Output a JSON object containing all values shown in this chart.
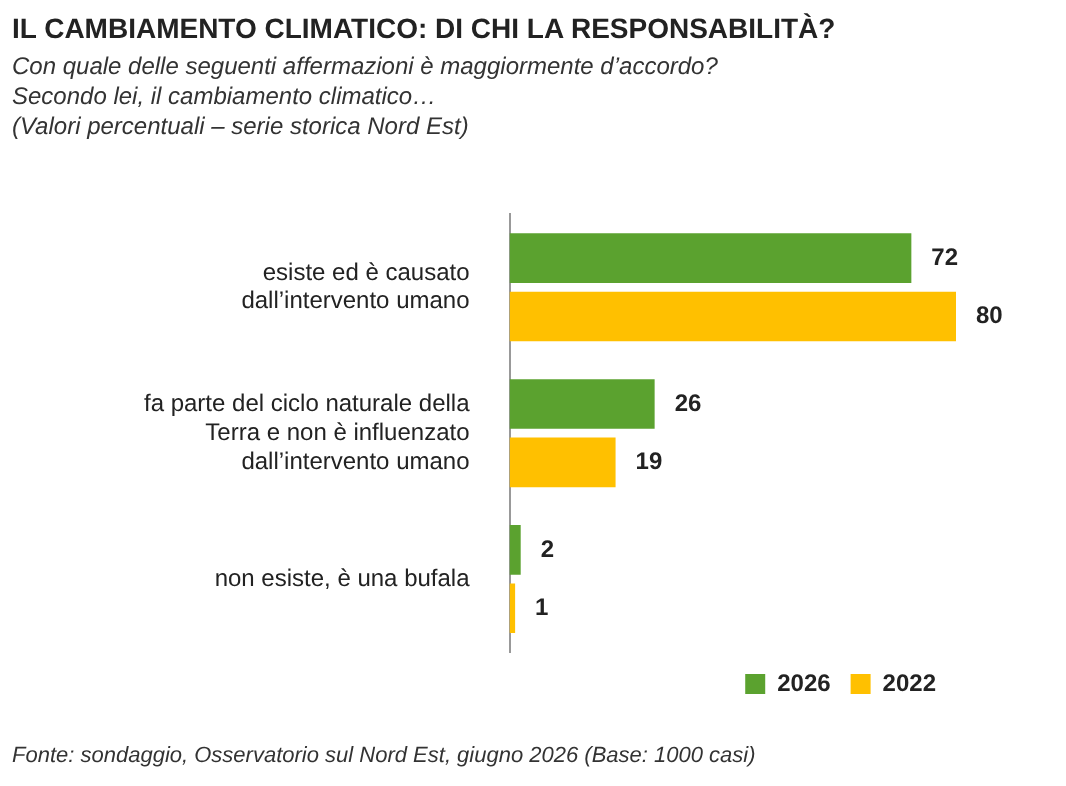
{
  "chart_data": {
    "type": "bar",
    "orientation": "horizontal",
    "title": "IL CAMBIAMENTO CLIMATICO: DI CHI LA RESPONSABILITÀ?",
    "subtitle": "Con quale delle seguenti affermazioni è maggiormente d’accordo?\nSecondo lei, il cambiamento climatico…\n(Valori percentuali – serie storica Nord Est)",
    "categories": [
      "esiste ed è causato dall’intervento umano",
      "fa parte del ciclo naturale della Terra e non è influenzato dall’intervento umano",
      "non esiste, è una bufala"
    ],
    "series": [
      {
        "name": "2026",
        "color": "#5ba22f",
        "values": [
          72,
          26,
          2
        ]
      },
      {
        "name": "2022",
        "color": "#ffc000",
        "values": [
          80,
          19,
          1
        ]
      }
    ],
    "data_labels": true,
    "legend": "bottom right",
    "annotations": [
      "Fonte: sondaggio, Osservatorio sul Nord Est, giugno 2026 (Base: 1000 casi)"
    ]
  }
}
